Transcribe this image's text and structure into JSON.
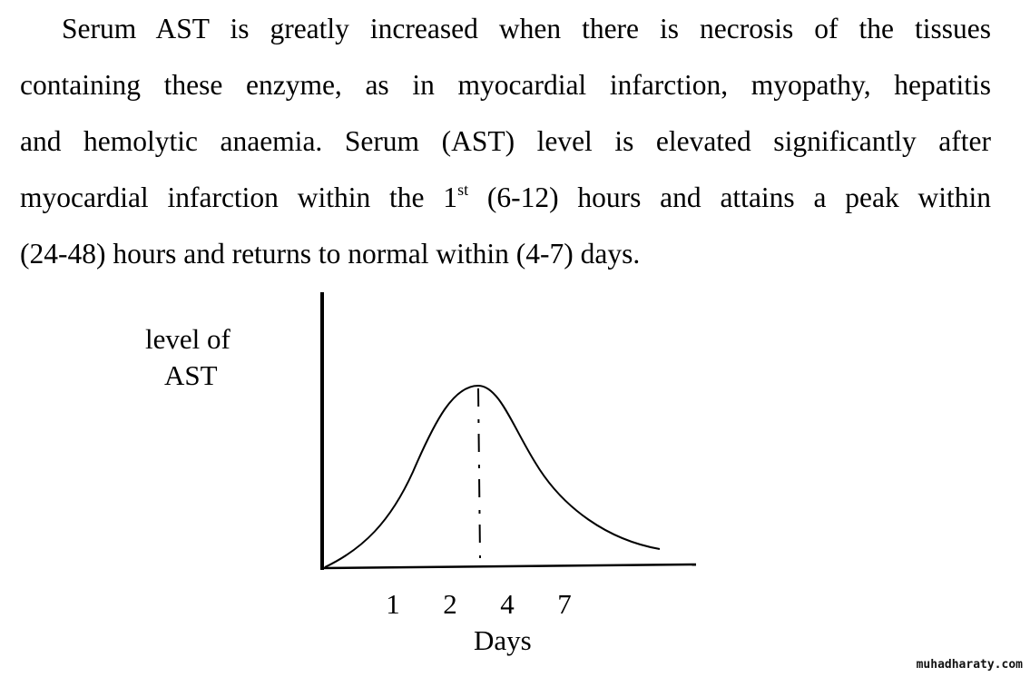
{
  "paragraph": {
    "lines": [
      "Serum AST is greatly increased when there is necrosis of the tissues",
      "containing these enzyme, as in myocardial infarction, myopathy, hepatitis",
      "and hemolytic anaemia. Serum (AST) level is elevated significantly after"
    ],
    "line4_before": "myocardial infarction within the 1",
    "line4_sup": "st",
    "line4_after": " (6-12) hours and attains a peak within",
    "line5": "(24-48) hours and returns to normal within (4-7) days."
  },
  "chart_data": {
    "type": "line",
    "title": "",
    "ylabel_line1": "level of",
    "ylabel_line2": "AST",
    "xlabel": "Days",
    "x_tick_labels": [
      "1",
      "2",
      "4",
      "7"
    ],
    "series": [
      {
        "name": "AST level",
        "description_peak_marker": "dashed vertical line at peak"
      }
    ],
    "grid": false
  },
  "watermark": "muhadharaty.com"
}
